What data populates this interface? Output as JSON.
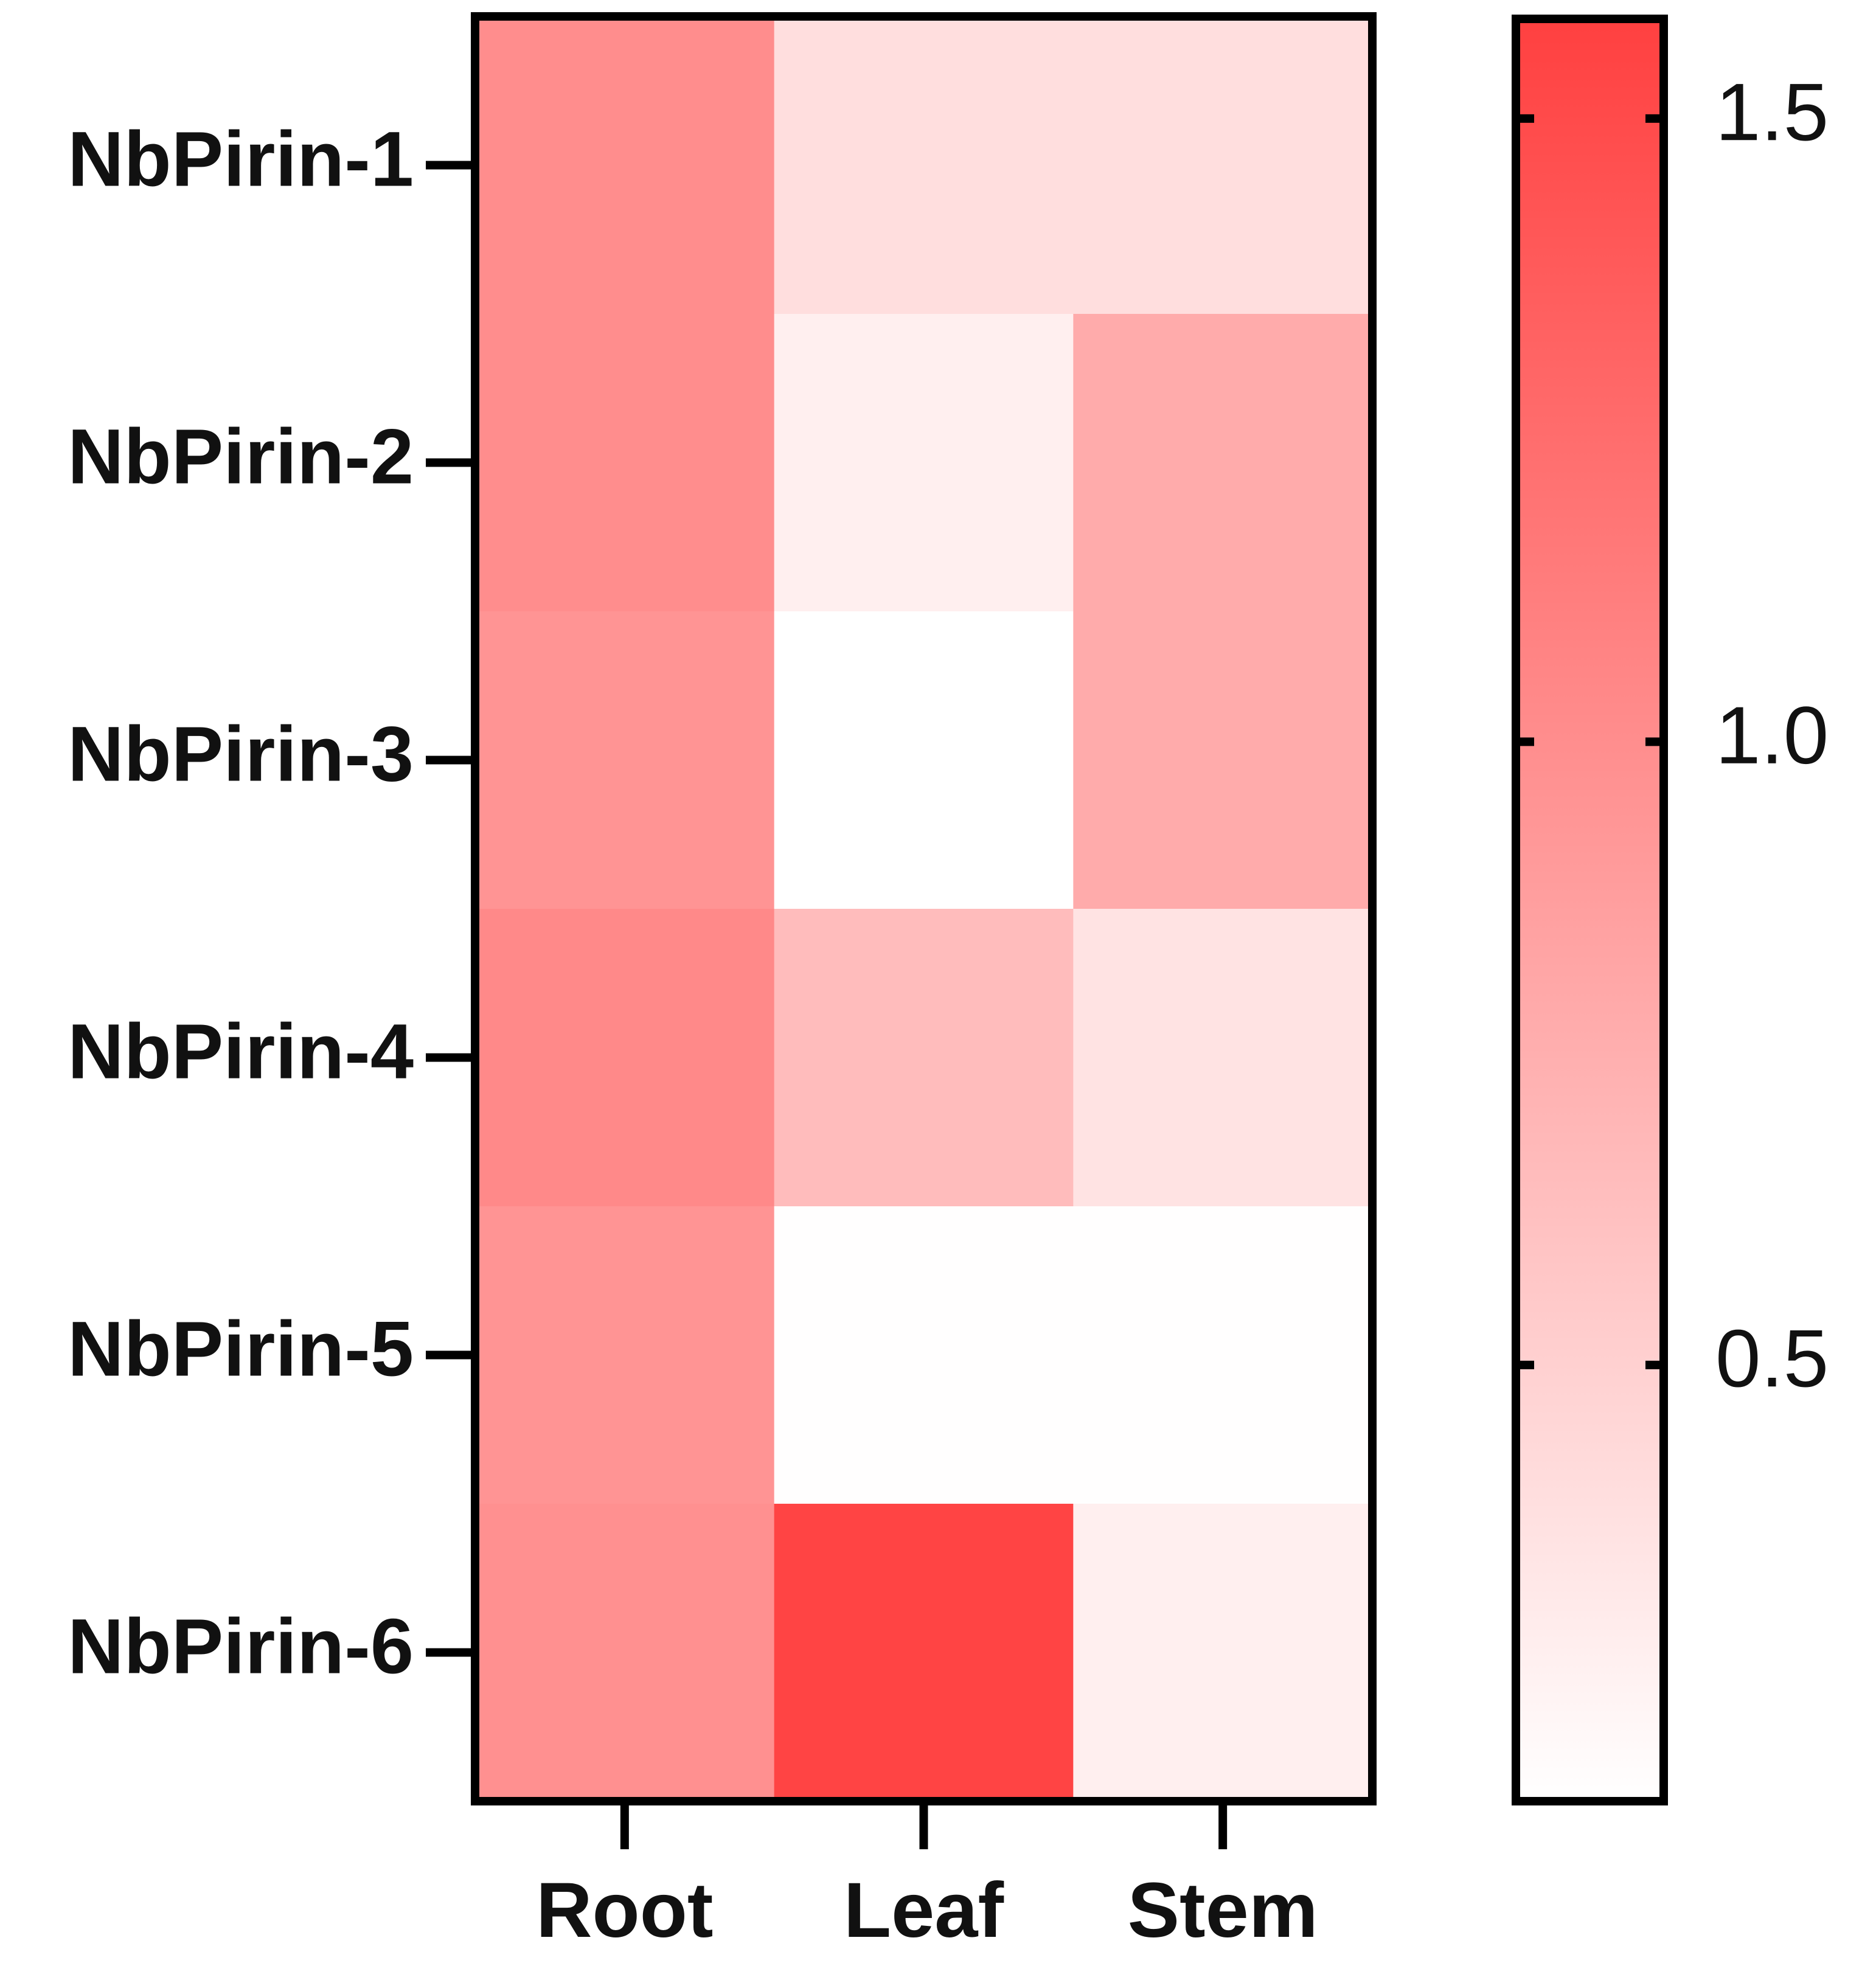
{
  "chart_data": {
    "type": "heatmap",
    "rows": [
      "NbPirin-1",
      "NbPirin-2",
      "NbPirin-3",
      "NbPirin-4",
      "NbPirin-5",
      "NbPirin-6"
    ],
    "columns": [
      "Root",
      "Leaf",
      "Stem"
    ],
    "values": [
      [
        1.0,
        0.4,
        0.4
      ],
      [
        1.0,
        0.27,
        0.78
      ],
      [
        0.95,
        0.15,
        0.78
      ],
      [
        1.03,
        0.65,
        0.36
      ],
      [
        0.95,
        0.16,
        0.16
      ],
      [
        0.98,
        1.55,
        0.27
      ]
    ],
    "colors": [
      "#ffffff",
      "#ff4040"
    ],
    "clim": [
      0.15,
      1.58
    ],
    "cticks": [
      0.5,
      {
        "value": 1.0,
        "label": "1.0"
      },
      1.5
    ]
  }
}
